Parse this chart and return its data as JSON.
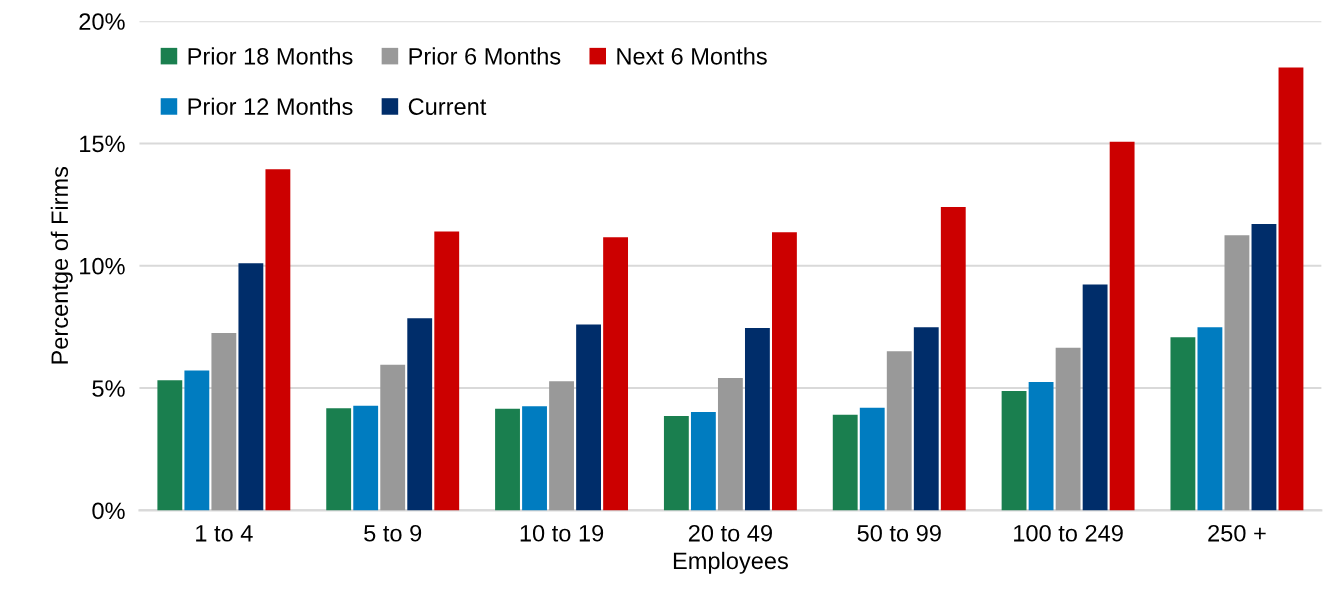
{
  "chart_data": {
    "type": "bar",
    "xlabel": "Employees",
    "ylabel": "Percentge of Firms",
    "categories": [
      "1 to 4",
      "5 to 9",
      "10 to 19",
      "20 to 49",
      "50 to 99",
      "100 to 249",
      "250 +"
    ],
    "series": [
      {
        "name": "Prior 18 Months",
        "color": "#1a7f4f",
        "values": [
          5.32,
          4.18,
          4.15,
          3.86,
          3.91,
          4.88,
          7.08
        ]
      },
      {
        "name": "Prior 12 Months",
        "color": "#007cc0",
        "values": [
          5.72,
          4.28,
          4.26,
          4.02,
          4.2,
          5.25,
          7.49
        ]
      },
      {
        "name": "Prior 6 Months",
        "color": "#999999",
        "values": [
          7.25,
          5.95,
          5.28,
          5.41,
          6.51,
          6.65,
          11.25
        ]
      },
      {
        "name": "Current",
        "color": "#002d6a",
        "values": [
          10.1,
          7.85,
          7.6,
          7.46,
          7.49,
          9.23,
          11.71
        ]
      },
      {
        "name": "Next 6 Months",
        "color": "#cc0000",
        "values": [
          13.95,
          11.4,
          11.17,
          11.37,
          12.4,
          15.07,
          18.1
        ]
      }
    ],
    "ylim": [
      0,
      20
    ],
    "yticks": [
      {
        "value": 0,
        "label": "0%"
      },
      {
        "value": 5,
        "label": "5%"
      },
      {
        "value": 10,
        "label": "10%"
      },
      {
        "value": 15,
        "label": "15%"
      },
      {
        "value": 20,
        "label": "20%"
      }
    ],
    "grid": "y",
    "legend": "top left"
  }
}
